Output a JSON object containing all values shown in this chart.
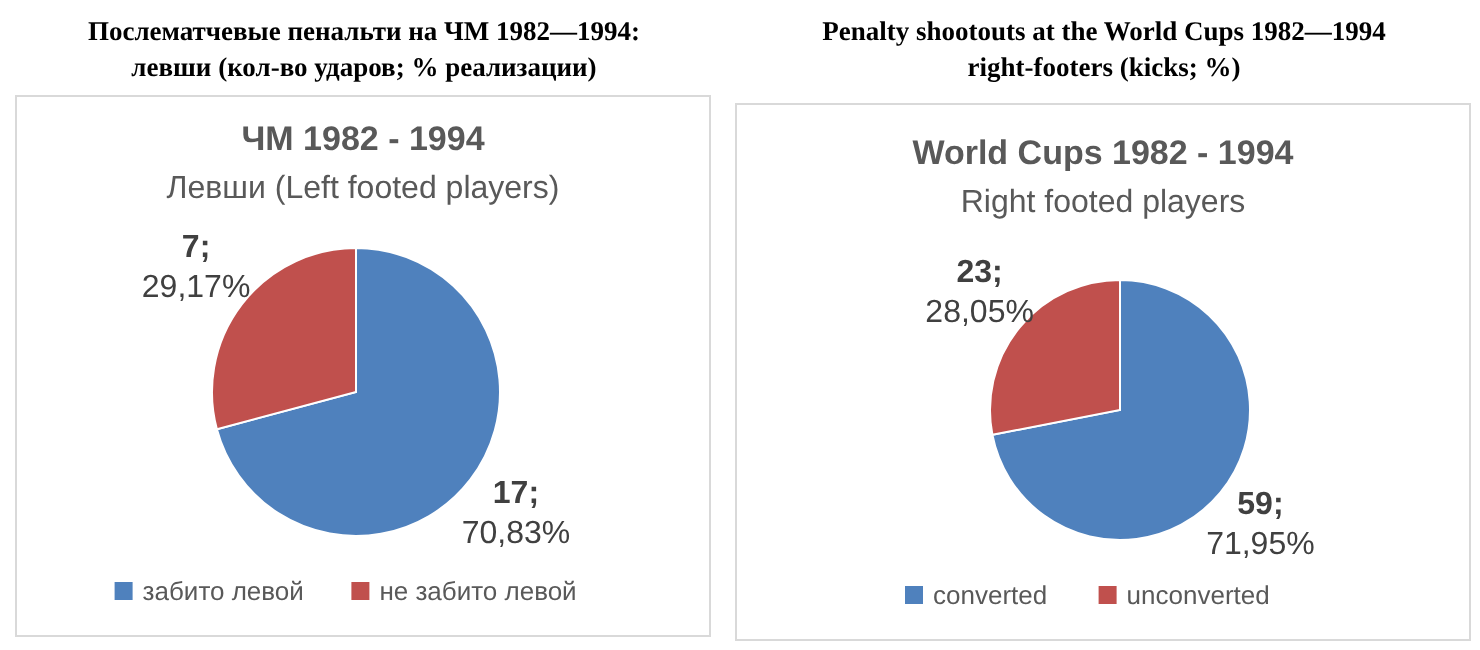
{
  "chart_data": [
    {
      "type": "pie",
      "title": "ЧМ 1982 - 1994",
      "subtitle": "Левши (Left footed players)",
      "annotations": [
        "Послематчевые пенальти на ЧМ 1982—1994:",
        "левши (кол-во ударов; % реализации)"
      ],
      "categories": [
        "забито левой",
        "не забито левой"
      ],
      "values": [
        17,
        7
      ],
      "colors": [
        "#4f81bd",
        "#c0504d"
      ],
      "value_labels": [
        "17; 70,83%",
        "7; 29,17%"
      ],
      "legend": "bottom"
    },
    {
      "type": "pie",
      "title": "World Cups 1982 - 1994",
      "subtitle": "Right footed players",
      "annotations": [
        "Penalty shootouts at the World Cups 1982—1994",
        "right-footers (kicks; %)"
      ],
      "categories": [
        "converted",
        "unconverted"
      ],
      "values": [
        59,
        23
      ],
      "colors": [
        "#4f81bd",
        "#c0504d"
      ],
      "value_labels": [
        "59; 71,95%",
        "23; 28,05%"
      ],
      "legend": "bottom"
    }
  ]
}
